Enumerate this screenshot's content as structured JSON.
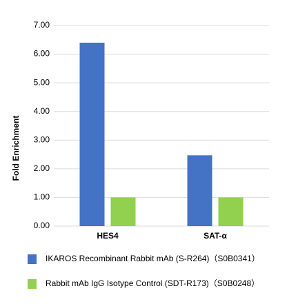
{
  "chart_data": {
    "type": "bar",
    "y_label": "Fold Enrichment",
    "categories": [
      "HES4",
      "SAT-α"
    ],
    "series": [
      {
        "name": "IKAROS Recombinant Rabbit mAb (S-R264)（S0B0341）",
        "color": "#4472c4",
        "values": [
          6.4,
          2.47
        ]
      },
      {
        "name": "Rabbit mAb IgG Isotype Control (SDT-R173)（S0B0248）",
        "color": "#92d050",
        "values": [
          1.0,
          1.0
        ]
      }
    ],
    "ylim": [
      0,
      7
    ],
    "yticks": [
      {
        "value": 0,
        "label": "0.00"
      },
      {
        "value": 1,
        "label": "1.00"
      },
      {
        "value": 2,
        "label": "2.00"
      },
      {
        "value": 3,
        "label": "3.00"
      },
      {
        "value": 4,
        "label": "4.00"
      },
      {
        "value": 5,
        "label": "5.00"
      },
      {
        "value": 6,
        "label": "6.00"
      },
      {
        "value": 7,
        "label": "7.00"
      }
    ],
    "grid": true,
    "legend": "bottom"
  }
}
